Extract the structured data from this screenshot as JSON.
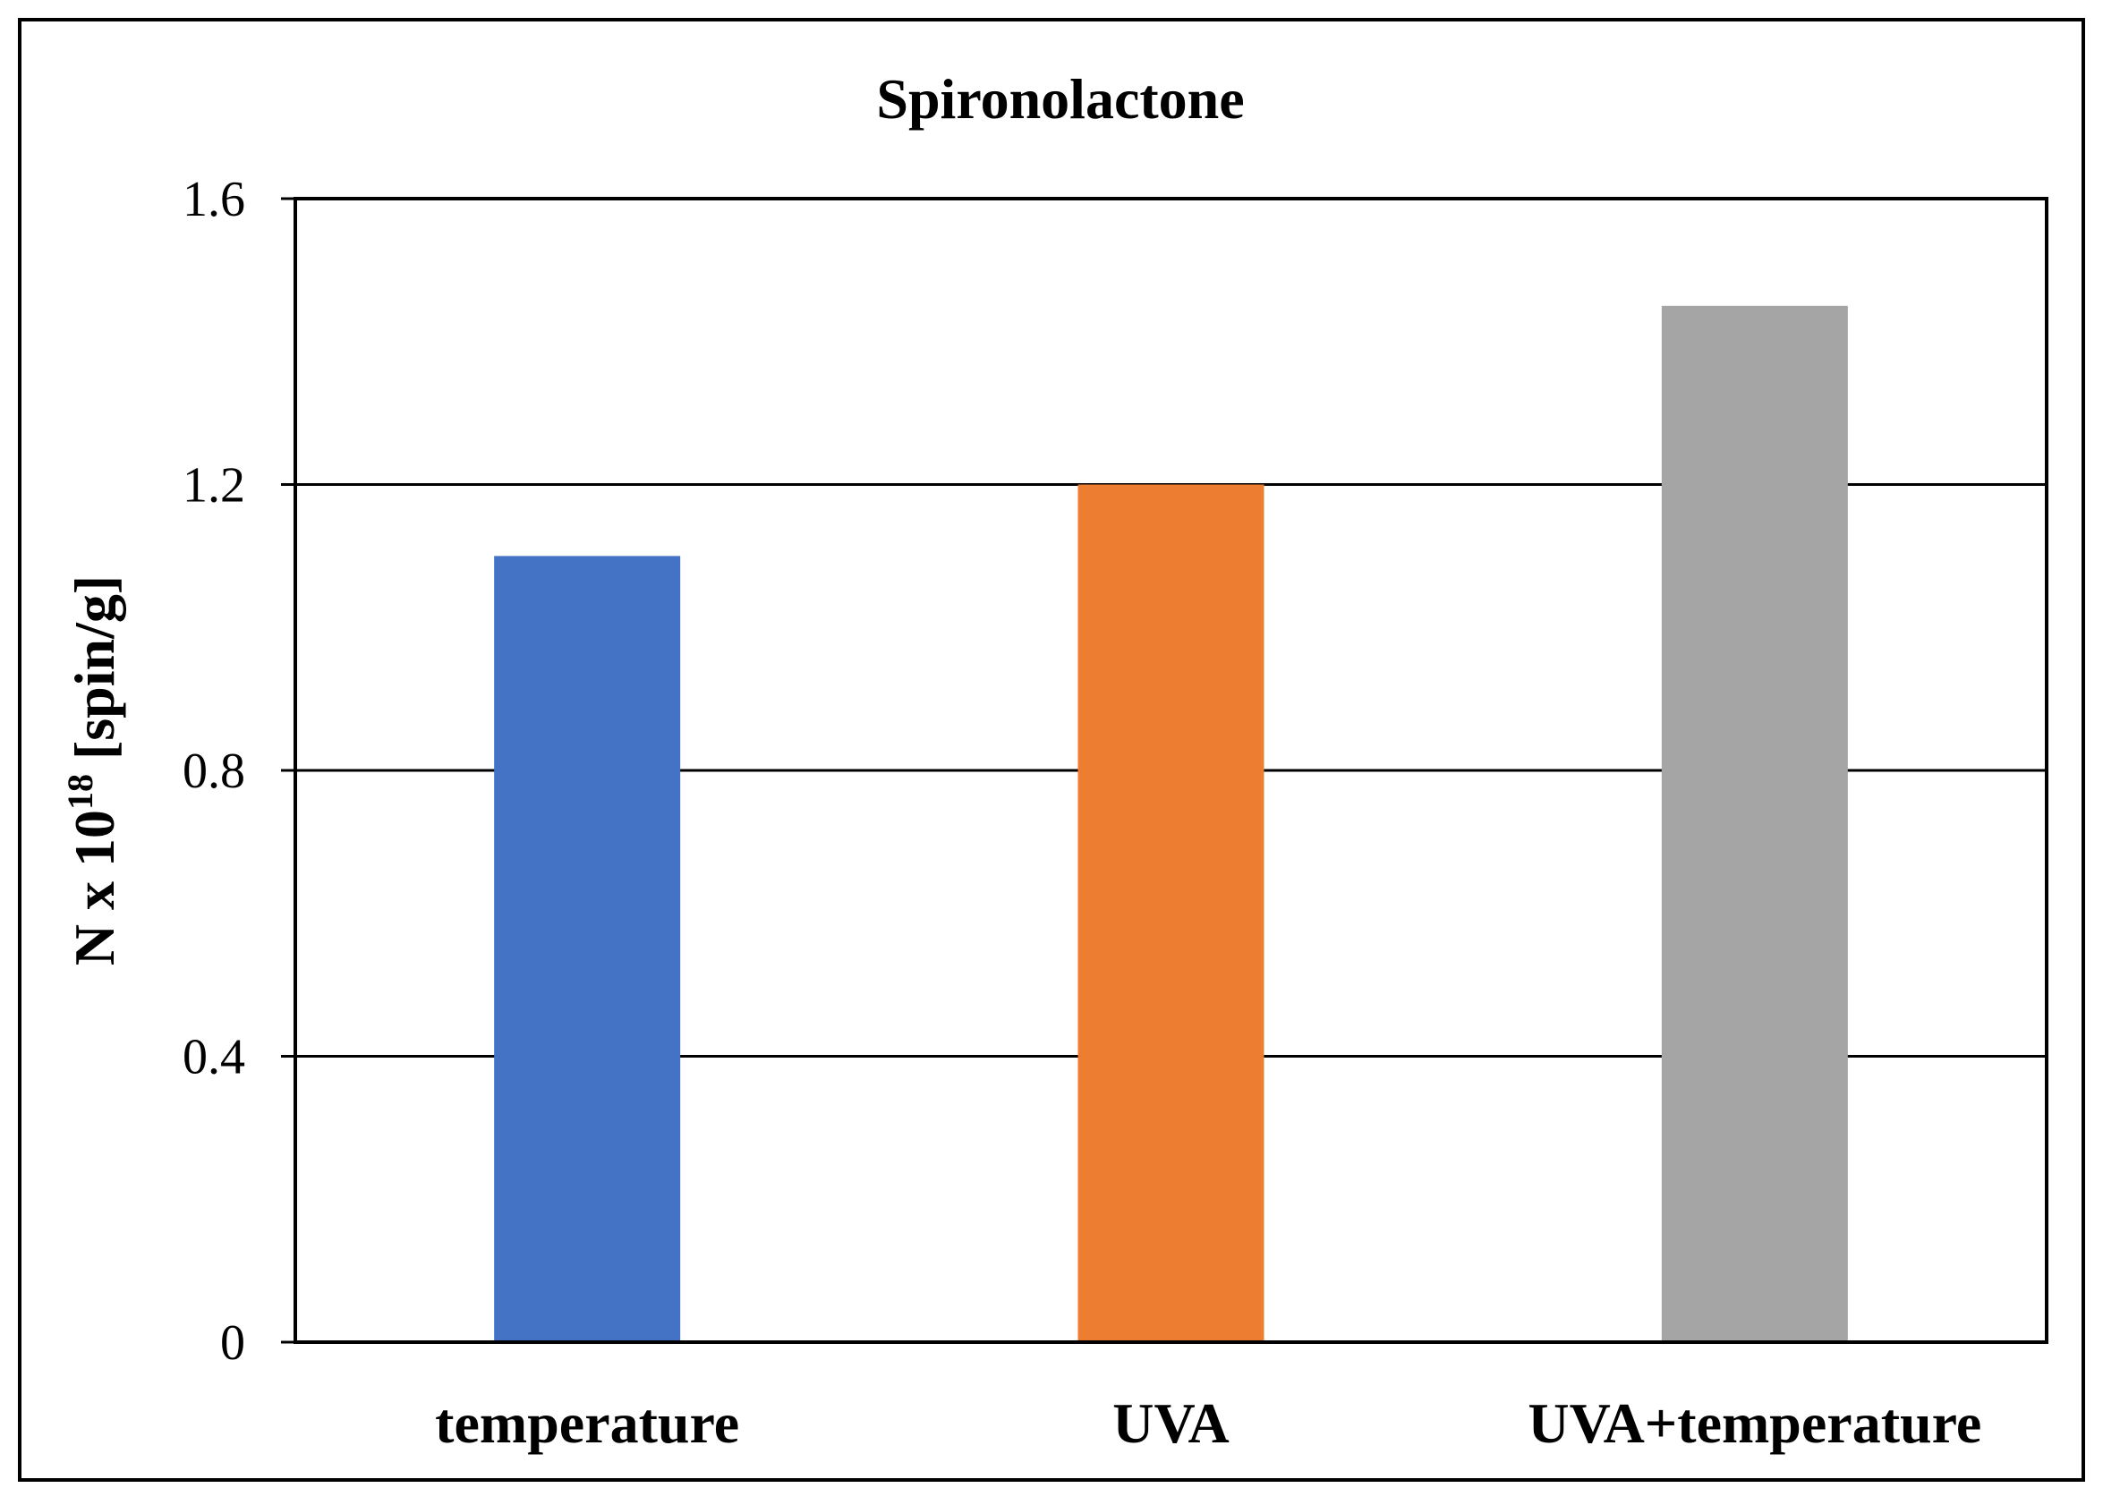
{
  "chart_data": {
    "type": "bar",
    "title": "Spironolactone",
    "categories": [
      "temperature",
      "UVA",
      "UVA+temperature"
    ],
    "values": [
      1.1,
      1.2,
      1.45
    ],
    "colors": [
      "#4472c4",
      "#ed7d31",
      "#a5a5a5"
    ],
    "ylabel": {
      "prefix": "N x 10",
      "superscript": "18",
      "suffix": " [spin/g]"
    },
    "xlabel": "",
    "ylim": [
      0,
      1.6
    ],
    "yticks": [
      0,
      0.4,
      0.8,
      1.2,
      1.6
    ],
    "ytick_labels": [
      "0",
      "0.4",
      "0.8",
      "1.2",
      "1.6"
    ],
    "grid": true,
    "legend": "none"
  }
}
